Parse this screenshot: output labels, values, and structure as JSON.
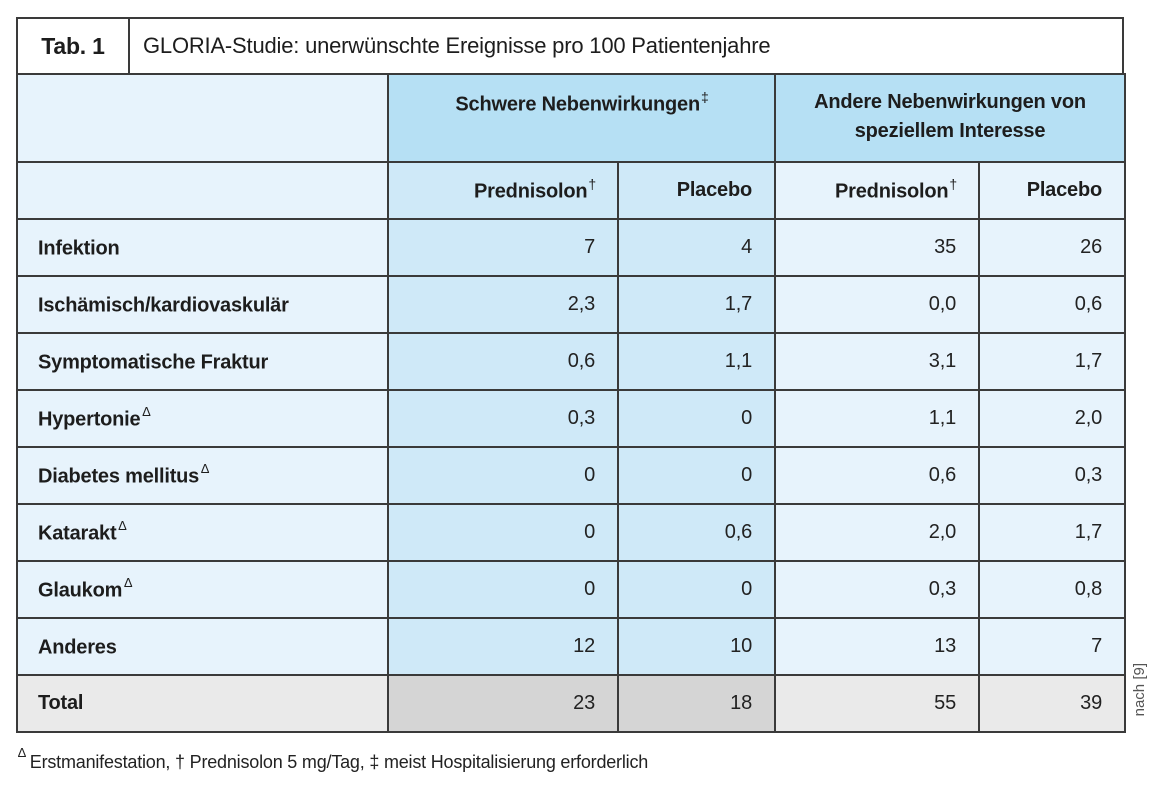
{
  "title": {
    "tag": "Tab. 1",
    "text": "GLORIA-Studie: unerwünschte Ereignisse pro 100 Patientenjahre"
  },
  "table": {
    "col_groups": [
      {
        "label": "Schwere Nebenwirkungen",
        "sup": "‡"
      },
      {
        "label": "Andere Nebenwirkungen von speziellem Interesse",
        "sup": ""
      }
    ],
    "col_headers": [
      {
        "label": "Prednisolon",
        "sup": "†"
      },
      {
        "label": "Placebo",
        "sup": ""
      },
      {
        "label": "Prednisolon",
        "sup": "†"
      },
      {
        "label": "Placebo",
        "sup": ""
      }
    ],
    "rows": [
      {
        "label": "Infektion",
        "sup": "",
        "values": [
          "7",
          "4",
          "35",
          "26"
        ]
      },
      {
        "label": "Ischämisch/kardiovaskulär",
        "sup": "",
        "values": [
          "2,3",
          "1,7",
          "0,0",
          "0,6"
        ]
      },
      {
        "label": "Symptomatische Fraktur",
        "sup": "",
        "values": [
          "0,6",
          "1,1",
          "3,1",
          "1,7"
        ]
      },
      {
        "label": "Hypertonie",
        "sup": "∆",
        "values": [
          "0,3",
          "0",
          "1,1",
          "2,0"
        ]
      },
      {
        "label": "Diabetes mellitus",
        "sup": "∆",
        "values": [
          "0",
          "0",
          "0,6",
          "0,3"
        ]
      },
      {
        "label": "Katarakt",
        "sup": "∆",
        "values": [
          "0",
          "0,6",
          "2,0",
          "1,7"
        ]
      },
      {
        "label": "Glaukom",
        "sup": "∆",
        "values": [
          "0",
          "0",
          "0,3",
          "0,8"
        ]
      },
      {
        "label": "Anderes",
        "sup": "",
        "values": [
          "12",
          "10",
          "13",
          "7"
        ]
      }
    ],
    "total_row": {
      "label": "Total",
      "values": [
        "23",
        "18",
        "55",
        "39"
      ]
    }
  },
  "footnote": {
    "delta": "∆",
    "text": "Erstmanifestation, † Prednisolon 5 mg/Tag, ‡ meist Hospitalisierung erforderlich"
  },
  "source": "nach [9]",
  "colors": {
    "group_header": "#b6e0f4",
    "mid_cell": "#cfe9f8",
    "light_cell": "#e7f3fc",
    "total_dark": "#d5d5d5",
    "total_light": "#eaeaea",
    "border": "#3a3a3a"
  }
}
